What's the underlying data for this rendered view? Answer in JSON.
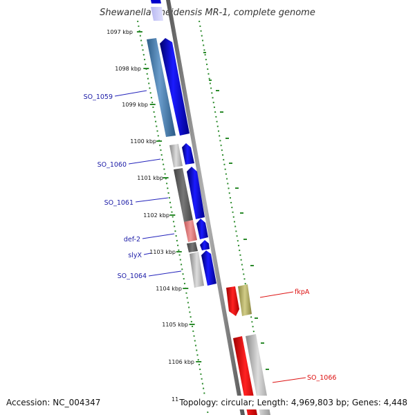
{
  "title": "Shewanella oneidensis MR-1, complete genome",
  "accession": "Accession: NC_004347",
  "topology": "Topology: circular; Length: 4,969,803 bp; Genes: 4,448",
  "ticks": [
    "1097 kbp",
    "1098 kbp",
    "1099 kbp",
    "1100 kbp",
    "1101 kbp",
    "1102 kbp",
    "1103 kbp",
    "1104 kbp",
    "1105 kbp",
    "1106 kbp",
    "11"
  ],
  "gene_labels": [
    "SO_1059",
    "SO_1060",
    "SO_1061",
    "def-2",
    "slyX",
    "SO_1064",
    "fkpA",
    "SO_1066"
  ],
  "colors": {
    "forward_gene": "#0000ee",
    "reverse_gene": "#ee0000",
    "forward_label": "#1a1aa6",
    "reverse_label": "#dd1111",
    "tick_mark": "#228822",
    "axis": "#8a8a8a"
  }
}
